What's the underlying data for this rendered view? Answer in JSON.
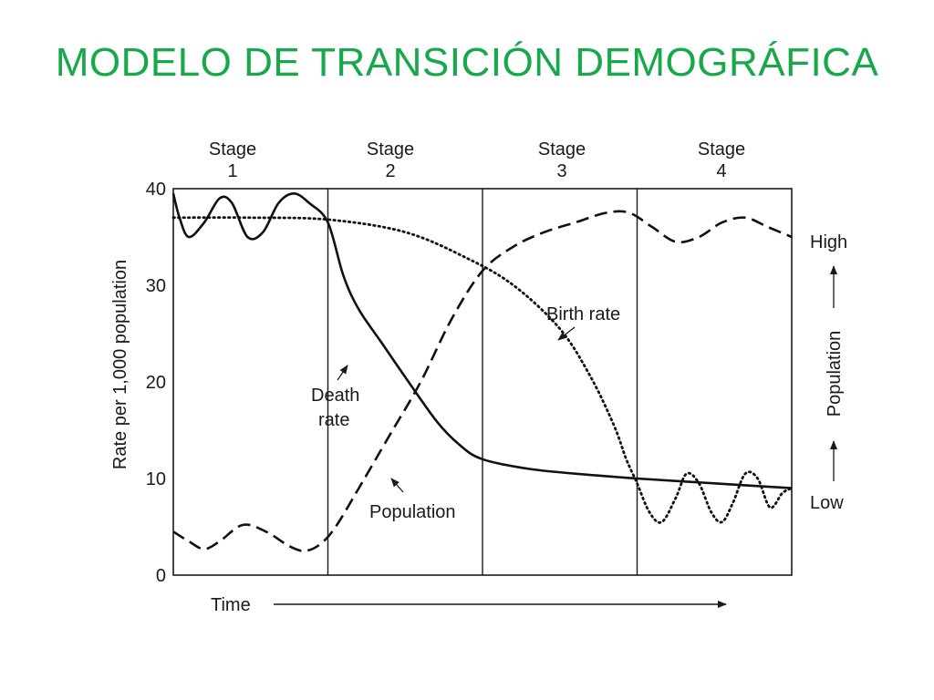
{
  "slide": {
    "title": "MODELO DE TRANSICIÓN DEMOGRÁFICA"
  },
  "chart_data": {
    "type": "line",
    "ylabel": "Rate per 1,000 population",
    "xlabel": "Time",
    "right_axis": {
      "label": "Population",
      "top_label": "High",
      "bottom_label": "Low"
    },
    "ylim": [
      0,
      40
    ],
    "y_ticks": [
      0,
      10,
      20,
      30,
      40
    ],
    "xlim": [
      0,
      4
    ],
    "stages": [
      {
        "top": "Stage",
        "num": "1"
      },
      {
        "top": "Stage",
        "num": "2"
      },
      {
        "top": "Stage",
        "num": "3"
      },
      {
        "top": "Stage",
        "num": "4"
      }
    ],
    "stage_boundaries": [
      1,
      2,
      3
    ],
    "series": [
      {
        "name": "Death rate",
        "style": "solid",
        "x": [
          0,
          0.04,
          0.1,
          0.2,
          0.3,
          0.38,
          0.48,
          0.58,
          0.68,
          0.78,
          0.88,
          1.0,
          1.1,
          1.2,
          1.35,
          1.5,
          1.7,
          1.85,
          2.0,
          2.3,
          2.6,
          3.0,
          3.5,
          4.0
        ],
        "y": [
          39.5,
          37,
          35,
          36.5,
          39,
          38.5,
          35,
          35.5,
          38.5,
          39.5,
          38.5,
          36.5,
          31,
          27.5,
          24,
          20.5,
          16,
          13.5,
          12,
          11,
          10.5,
          10,
          9.5,
          9
        ]
      },
      {
        "name": "Birth rate",
        "style": "dotted",
        "x": [
          0,
          0.5,
          1.0,
          1.5,
          1.9,
          2.2,
          2.5,
          2.7,
          2.85,
          2.93,
          3.0,
          3.08,
          3.16,
          3.25,
          3.32,
          3.4,
          3.48,
          3.55,
          3.62,
          3.7,
          3.78,
          3.86,
          3.94,
          4.0
        ],
        "y": [
          37,
          37,
          36.8,
          35.5,
          32.8,
          30,
          25.5,
          20.5,
          15.5,
          12,
          9.5,
          6.5,
          5.5,
          8,
          10.5,
          9.5,
          6.5,
          5.5,
          7.5,
          10.5,
          10,
          7,
          8.5,
          9
        ]
      },
      {
        "name": "Population",
        "style": "dashed",
        "x": [
          0,
          0.1,
          0.2,
          0.3,
          0.45,
          0.6,
          0.75,
          0.85,
          0.95,
          1.05,
          1.2,
          1.4,
          1.6,
          1.8,
          2.0,
          2.2,
          2.4,
          2.6,
          2.8,
          2.95,
          3.1,
          3.25,
          3.4,
          3.55,
          3.7,
          3.85,
          4.0
        ],
        "y": [
          4.5,
          3.5,
          2.7,
          3.5,
          5.2,
          4.5,
          3,
          2.5,
          3.2,
          5,
          9,
          14.5,
          20,
          26.5,
          31.5,
          34,
          35.5,
          36.5,
          37.5,
          37.5,
          36,
          34.5,
          35,
          36.5,
          37,
          36,
          35
        ]
      }
    ],
    "annotations": [
      {
        "text": "Birth rate",
        "series": "Birth rate"
      },
      {
        "lines": [
          "Death",
          "rate"
        ],
        "series": "Death rate"
      },
      {
        "text": "Population",
        "series": "Population"
      }
    ]
  }
}
